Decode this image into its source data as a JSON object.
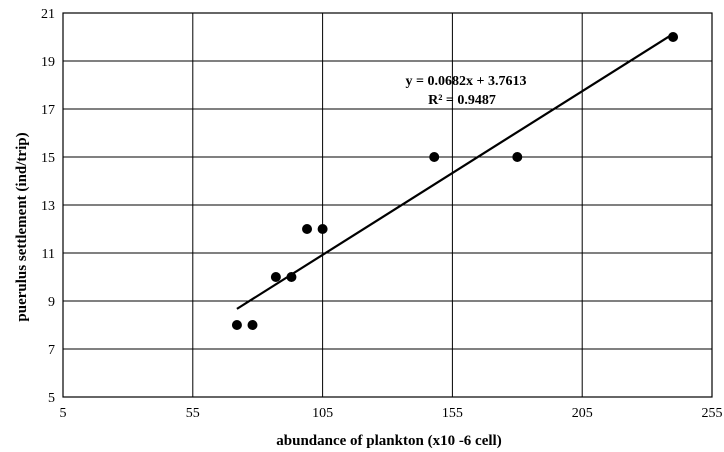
{
  "chart_data": {
    "type": "scatter",
    "xlabel": "abundance of plankton (x10 -6 cell)",
    "ylabel": "puerulus settlement (ind/trip)",
    "xlim": [
      5,
      255
    ],
    "ylim": [
      5,
      21
    ],
    "x_ticks": [
      5,
      55,
      105,
      155,
      205,
      255
    ],
    "y_ticks": [
      5,
      7,
      9,
      11,
      13,
      15,
      17,
      19,
      21
    ],
    "x_tick_labels": [
      "5",
      "55",
      "105",
      "155",
      "205",
      "255"
    ],
    "y_tick_labels": [
      "5",
      "7",
      "9",
      "11",
      "13",
      "15",
      "17",
      "19",
      "21"
    ],
    "grid": true,
    "points": [
      {
        "x": 72,
        "y": 8
      },
      {
        "x": 78,
        "y": 8
      },
      {
        "x": 87,
        "y": 10
      },
      {
        "x": 93,
        "y": 10
      },
      {
        "x": 99,
        "y": 12
      },
      {
        "x": 105,
        "y": 12
      },
      {
        "x": 148,
        "y": 15
      },
      {
        "x": 180,
        "y": 15
      },
      {
        "x": 240,
        "y": 20
      }
    ],
    "trendline": {
      "slope": 0.0682,
      "intercept": 3.7613,
      "x_range": [
        72,
        240
      ],
      "equation": "y = 0.0682x + 3.7613",
      "r_squared": "R² = 0.9487"
    },
    "colors": {
      "marker": "#000000",
      "line": "#000000",
      "grid": "#000000"
    }
  }
}
